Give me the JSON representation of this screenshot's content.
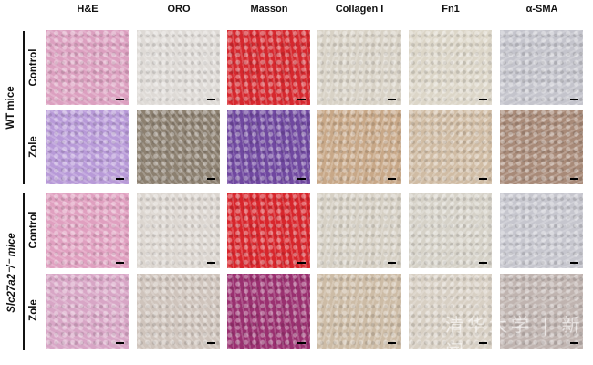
{
  "columns": [
    "H&E",
    "ORO",
    "Masson",
    "Collagen I",
    "Fn1",
    "α-SMA"
  ],
  "groups": [
    {
      "label": "WT mice",
      "rows": [
        "Control",
        "Zole"
      ]
    },
    {
      "label": "Slc27a2⁻/⁻ mice",
      "rows": [
        "Control",
        "Zole"
      ]
    }
  ],
  "panel_colors": {
    "H&E": [
      "#dca0c0",
      "#b89ad8",
      "#e0a0c0",
      "#d8a6c6"
    ],
    "ORO": [
      "#dedad6",
      "#8c8070",
      "#dcd6d0",
      "#cfc4bc"
    ],
    "Masson": [
      "#d6282e",
      "#7048a0",
      "#d8262c",
      "#9a3070"
    ],
    "Collagen I": [
      "#d8d2c6",
      "#c8a888",
      "#d6d0c4",
      "#cdbca6"
    ],
    "Fn1": [
      "#dcd6c8",
      "#d0bca4",
      "#d6d2c8",
      "#d8d0c4"
    ],
    "α-SMA": [
      "#c4c4cc",
      "#a88a78",
      "#c6c6ce",
      "#c0b4b0"
    ]
  },
  "watermark": "清华大学 | 新闻"
}
